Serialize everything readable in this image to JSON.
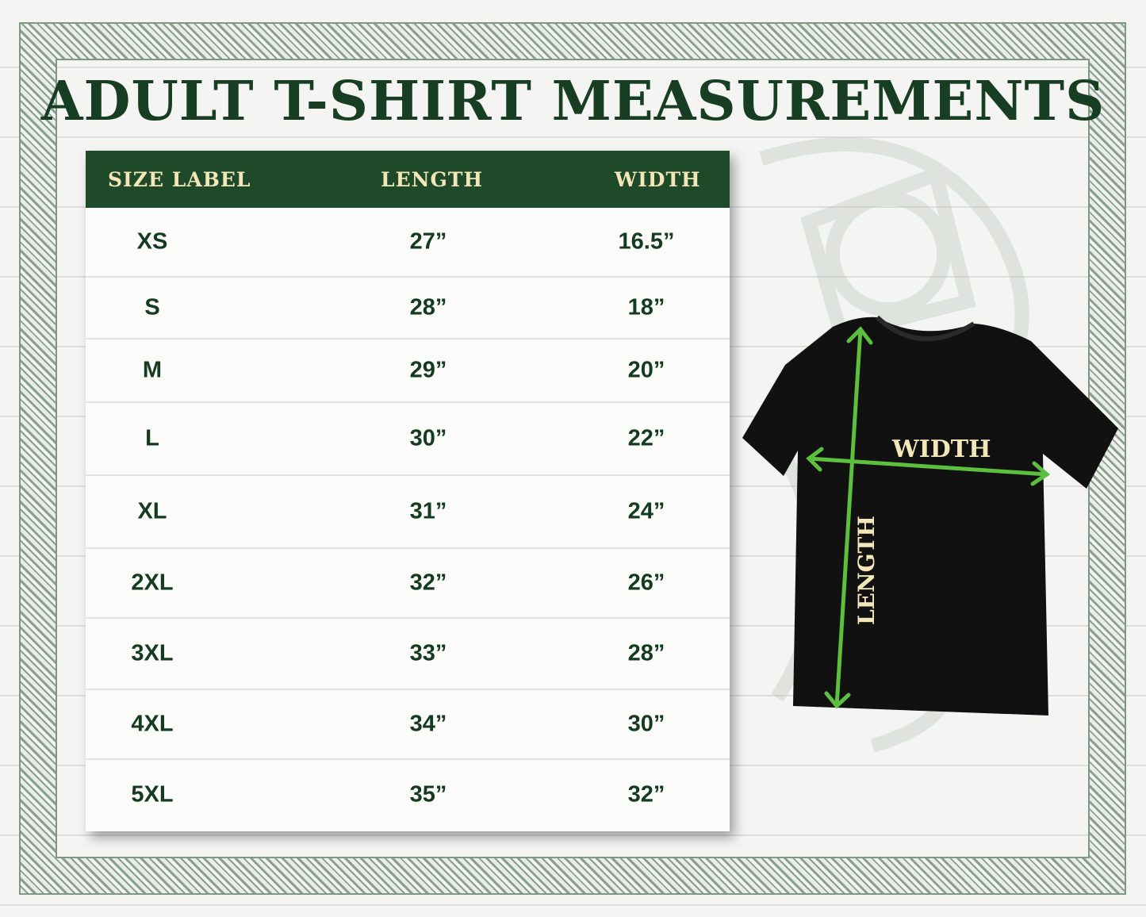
{
  "title": "ADULT T-SHIRT MEASUREMENTS",
  "table": {
    "headers": [
      "SIZE LABEL",
      "LENGTH",
      "WIDTH"
    ],
    "rows": [
      [
        "XS",
        "27”",
        "16.5”"
      ],
      [
        "S",
        "28”",
        "18”"
      ],
      [
        "M",
        "29”",
        "20”"
      ],
      [
        "L",
        "30”",
        "22”"
      ],
      [
        "XL",
        "31”",
        "24”"
      ],
      [
        "2XL",
        "32”",
        "26”"
      ],
      [
        "3XL",
        "33”",
        "28”"
      ],
      [
        "4XL",
        "34”",
        "30”"
      ],
      [
        "5XL",
        "35”",
        "32”"
      ]
    ]
  },
  "diagram": {
    "width_label": "WIDTH",
    "length_label": "LENGTH"
  },
  "colors": {
    "header_bg": "#1f4a2a",
    "header_text": "#f3e6b8",
    "value_text": "#143a20",
    "arrow": "#5cbf3e",
    "shirt": "#111111"
  }
}
